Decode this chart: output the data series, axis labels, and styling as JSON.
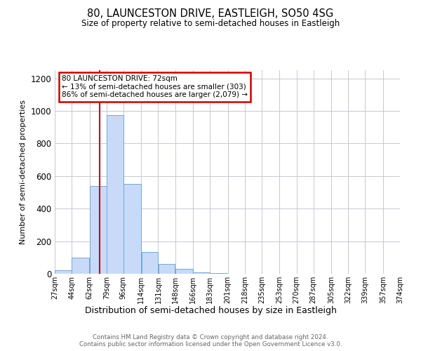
{
  "title": "80, LAUNCESTON DRIVE, EASTLEIGH, SO50 4SG",
  "subtitle": "Size of property relative to semi-detached houses in Eastleigh",
  "xlabel": "Distribution of semi-detached houses by size in Eastleigh",
  "ylabel": "Number of semi-detached properties",
  "bar_edges": [
    27,
    44,
    62,
    79,
    96,
    114,
    131,
    148,
    166,
    183,
    201,
    218,
    235,
    253,
    270,
    287,
    305,
    322,
    339,
    357,
    374
  ],
  "bar_heights": [
    20,
    100,
    540,
    975,
    550,
    135,
    60,
    30,
    10,
    5,
    0,
    0,
    0,
    0,
    0,
    0,
    0,
    0,
    0,
    0
  ],
  "bar_color": "#c9daf8",
  "bar_edge_color": "#6fa8dc",
  "property_size": 72,
  "vline_color": "#cc0000",
  "annotation_line1": "80 LAUNCESTON DRIVE: 72sqm",
  "annotation_line2": "← 13% of semi-detached houses are smaller (303)",
  "annotation_line3": "86% of semi-detached houses are larger (2,079) →",
  "annotation_box_color": "#cc0000",
  "ylim": [
    0,
    1250
  ],
  "yticks": [
    0,
    200,
    400,
    600,
    800,
    1000,
    1200
  ],
  "tick_labels": [
    "27sqm",
    "44sqm",
    "62sqm",
    "79sqm",
    "96sqm",
    "114sqm",
    "131sqm",
    "148sqm",
    "166sqm",
    "183sqm",
    "201sqm",
    "218sqm",
    "235sqm",
    "253sqm",
    "270sqm",
    "287sqm",
    "305sqm",
    "322sqm",
    "339sqm",
    "357sqm",
    "374sqm"
  ],
  "footer_line1": "Contains HM Land Registry data © Crown copyright and database right 2024.",
  "footer_line2": "Contains public sector information licensed under the Open Government Licence v3.0.",
  "background_color": "#ffffff",
  "grid_color": "#c8c8d4"
}
